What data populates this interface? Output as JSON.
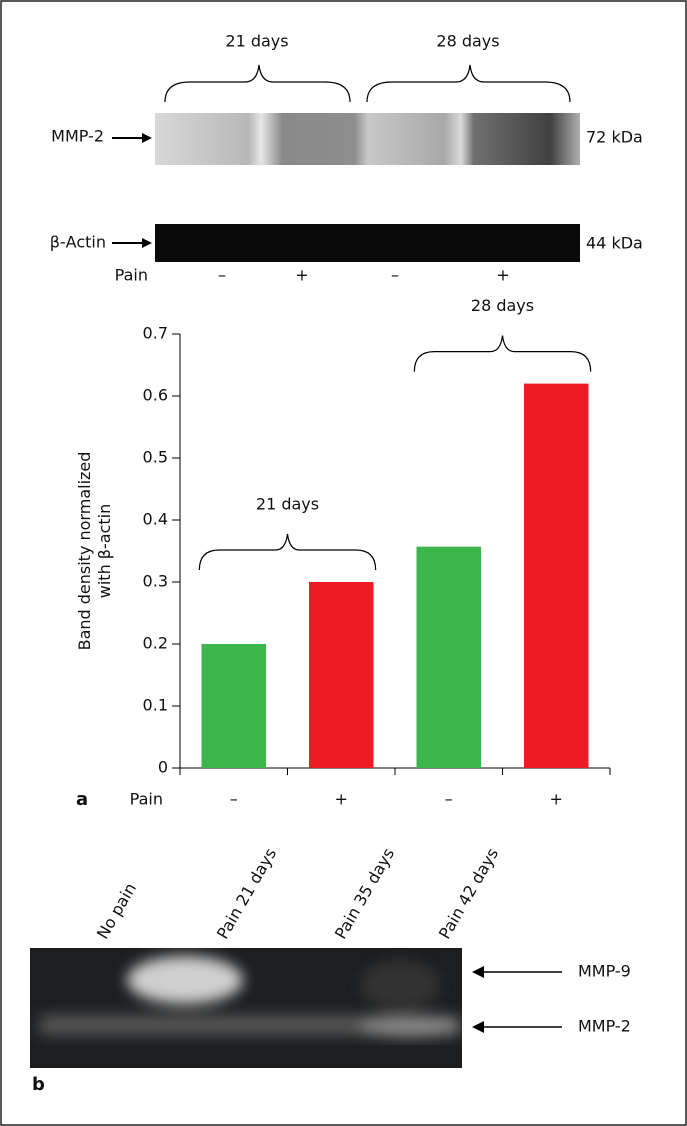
{
  "blot_a": {
    "groups": [
      "21 days",
      "28 days"
    ],
    "top_label": "MMP-2",
    "top_size": "72 kDa",
    "bottom_label": "β-Actin",
    "bottom_size": "44 kDa",
    "pain_label": "Pain",
    "pain_signs": [
      "–",
      "+",
      "–",
      "+"
    ]
  },
  "chart_data": {
    "type": "bar",
    "panel_label": "a",
    "ylabel": [
      "Band density normalized",
      "with β-actin"
    ],
    "category_title": "Pain",
    "categories": [
      "–",
      "+",
      "–",
      "+"
    ],
    "values": [
      0.2,
      0.3,
      0.357,
      0.62
    ],
    "colors": [
      "#3cb54a",
      "#ed1c24",
      "#3cb54a",
      "#ed1c24"
    ],
    "ylim": [
      0,
      0.7
    ],
    "yticks": [
      0,
      0.1,
      0.2,
      0.3,
      0.4,
      0.5,
      0.6,
      0.7
    ],
    "brackets": [
      "21 days",
      "28 days"
    ]
  },
  "blot_b": {
    "panel_label": "b",
    "lanes": [
      "No pain",
      "Pain 21 days",
      "Pain 35 days",
      "Pain 42 days"
    ],
    "bands": [
      "MMP-9",
      "MMP-2"
    ]
  }
}
